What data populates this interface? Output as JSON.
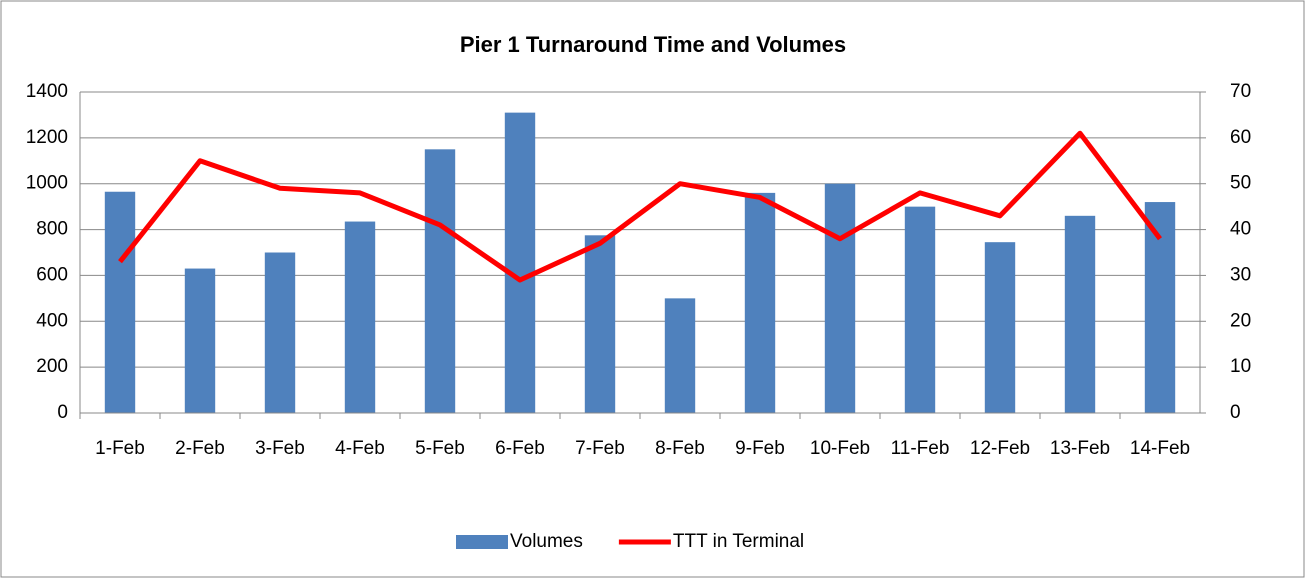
{
  "chart_data": {
    "type": "bar_line",
    "title": "Pier 1 Turnaround Time and Volumes",
    "categories": [
      "1-Feb",
      "2-Feb",
      "3-Feb",
      "4-Feb",
      "5-Feb",
      "6-Feb",
      "7-Feb",
      "8-Feb",
      "9-Feb",
      "10-Feb",
      "11-Feb",
      "12-Feb",
      "13-Feb",
      "14-Feb"
    ],
    "series": [
      {
        "name": "Volumes",
        "color": "#4f81bd",
        "type": "bar",
        "values": [
          965,
          630,
          700,
          835,
          1150,
          1310,
          775,
          500,
          960,
          1000,
          900,
          745,
          860,
          920
        ]
      },
      {
        "name": "TTT in Terminal",
        "color": "#ff0000",
        "type": "line",
        "axis": "y2",
        "values": [
          33,
          55,
          49,
          48,
          41,
          29,
          37,
          50,
          47,
          38,
          48,
          43,
          61,
          38
        ]
      }
    ],
    "ylim": [
      0,
      1400
    ],
    "yticks": [
      0,
      200,
      400,
      600,
      800,
      1000,
      1200,
      1400
    ],
    "y2lim": [
      0,
      70
    ],
    "y2ticks": [
      0,
      10,
      20,
      30,
      40,
      50,
      60,
      70
    ],
    "grid": true,
    "legend": "bottom"
  }
}
